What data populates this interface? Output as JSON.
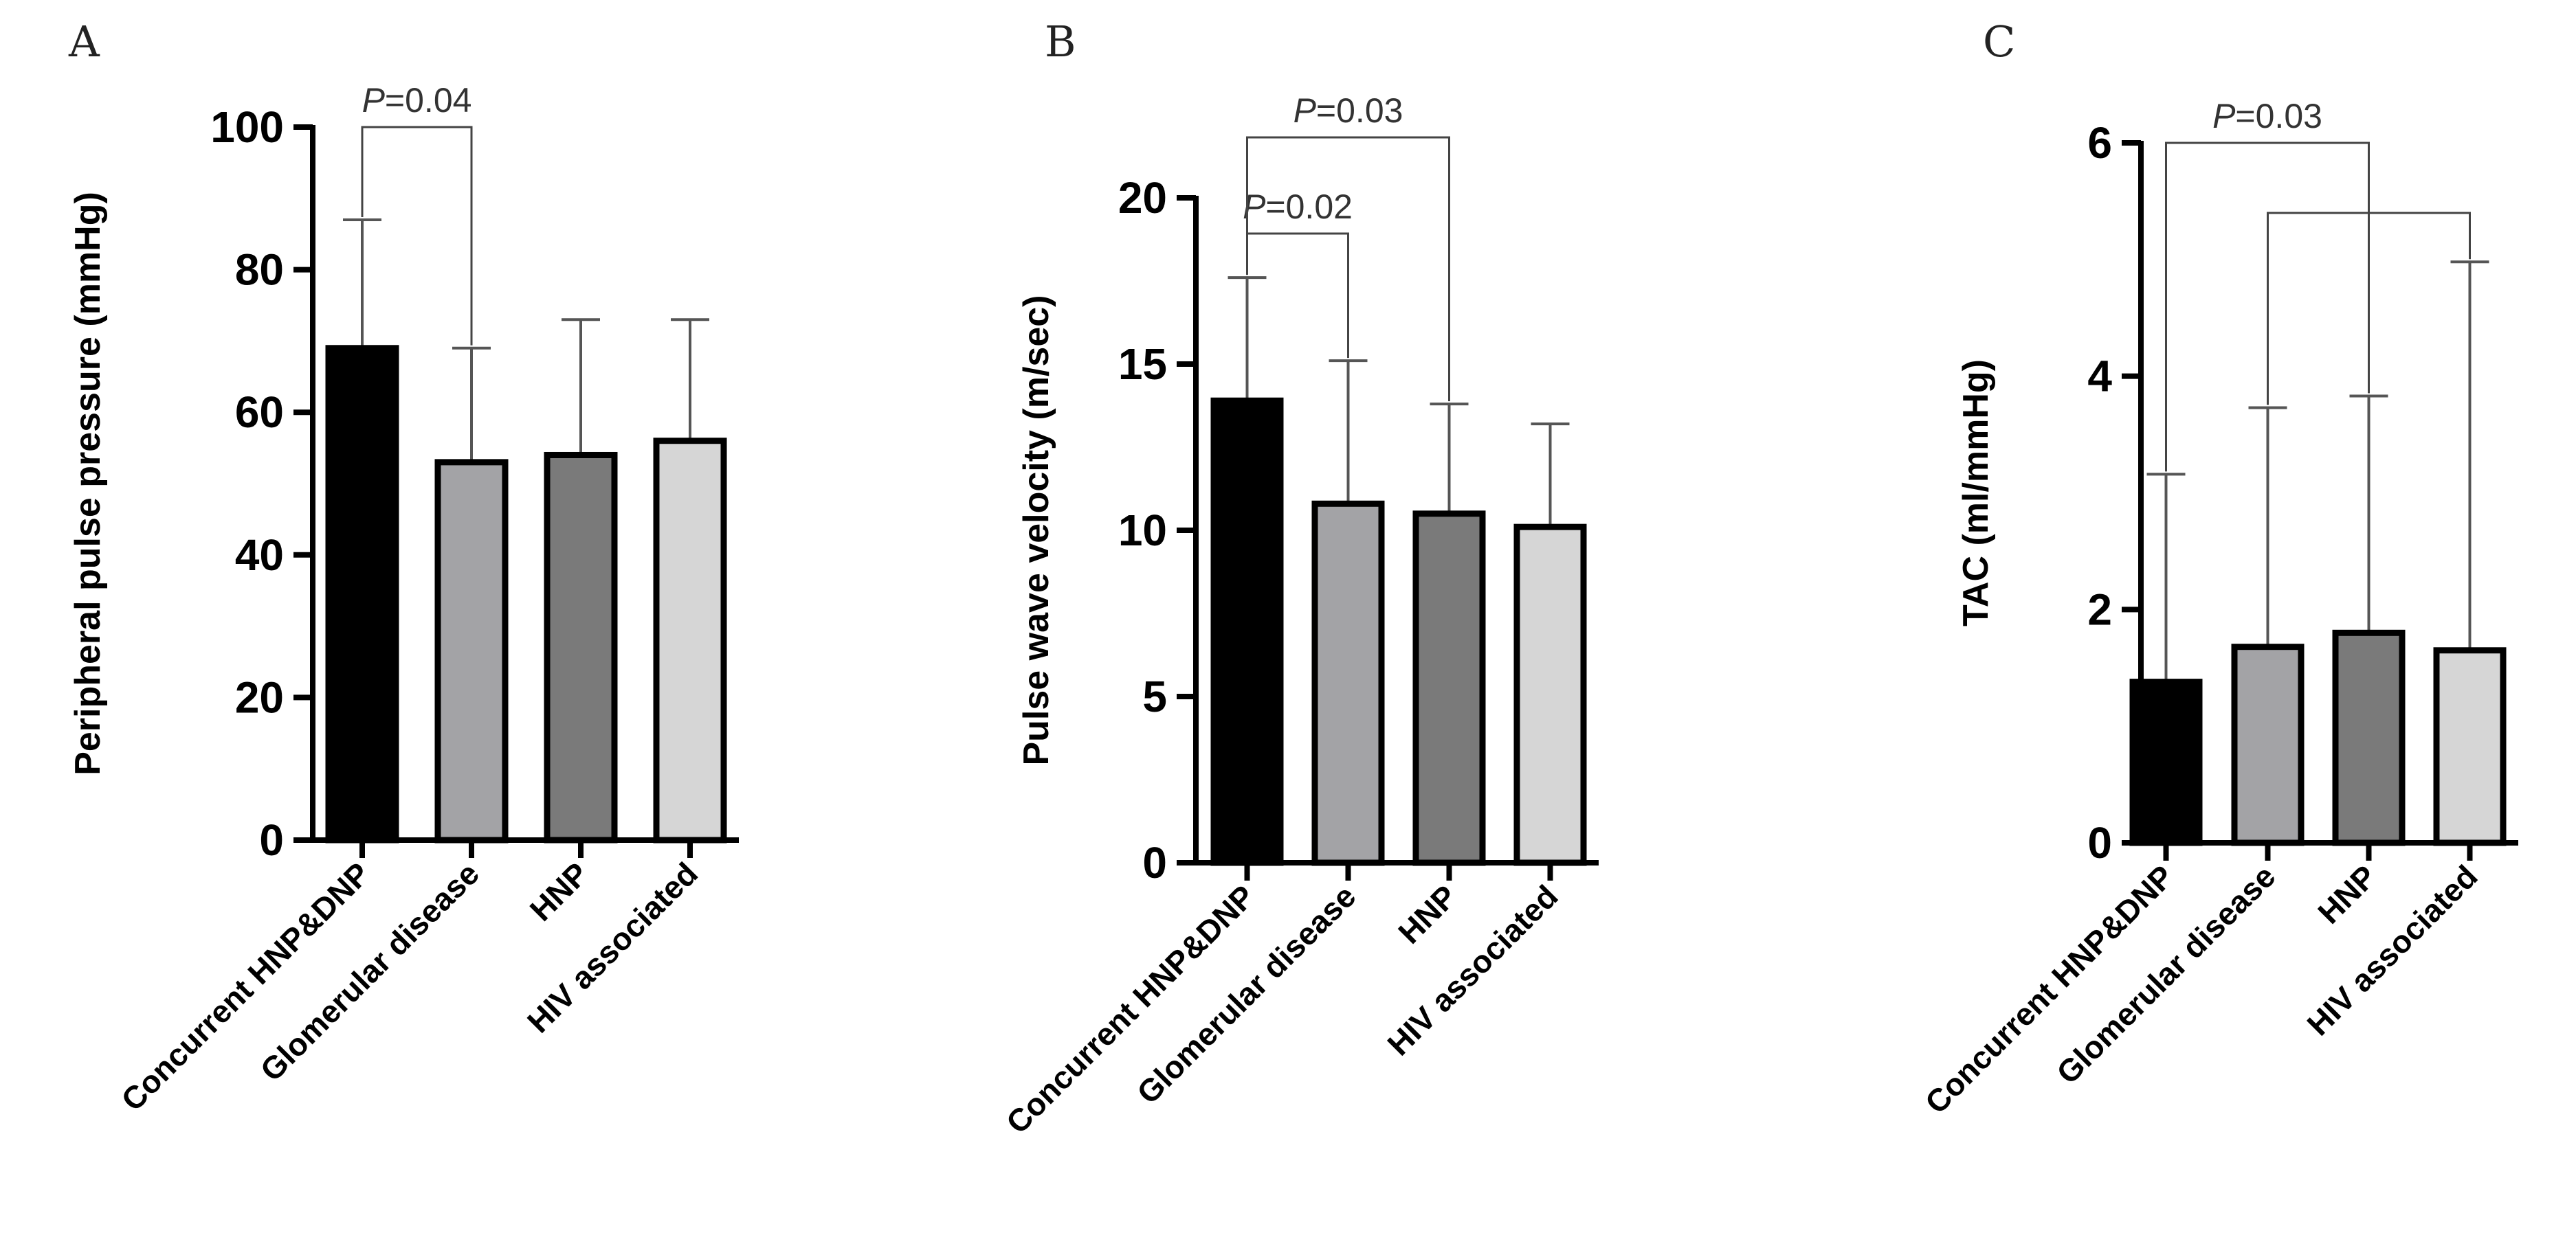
{
  "chart_data": [
    {
      "type": "bar",
      "panel": "A",
      "ylabel": "Peripheral pulse pressure (mmHg)",
      "ylim": [
        0,
        100
      ],
      "yticks": [
        "0",
        "20",
        "40",
        "60",
        "80",
        "100"
      ],
      "categories": [
        "Concurrent HNP&DNP",
        "Glomerular disease",
        "HNP",
        "HIV associated"
      ],
      "values": [
        69,
        53,
        54,
        56
      ],
      "error_upper": [
        87,
        69,
        73,
        73
      ],
      "bar_colors": [
        "#000000",
        "#a3a3a6",
        "#7a7a7a",
        "#d6d6d6"
      ],
      "significance": [
        {
          "from": 0,
          "to": 1,
          "p_symbol": "P",
          "p_value": "=0.04"
        }
      ]
    },
    {
      "type": "bar",
      "panel": "B",
      "ylabel": "Pulse wave velocity (m/sec)",
      "ylim": [
        0,
        20
      ],
      "yticks": [
        "0",
        "5",
        "10",
        "15",
        "20"
      ],
      "categories": [
        "Concurrent HNP&DNP",
        "Glomerular disease",
        "HNP",
        "HIV associated"
      ],
      "values": [
        13.9,
        10.8,
        10.5,
        10.1
      ],
      "error_upper": [
        17.6,
        15.1,
        13.8,
        13.2
      ],
      "bar_colors": [
        "#000000",
        "#a3a3a6",
        "#7a7a7a",
        "#d6d6d6"
      ],
      "significance": [
        {
          "from": 0,
          "to": 1,
          "p_symbol": "P",
          "p_value": "=0.02"
        },
        {
          "from": 0,
          "to": 2,
          "p_symbol": "P",
          "p_value": "=0.03"
        }
      ]
    },
    {
      "type": "bar",
      "panel": "C",
      "ylabel": "TAC (ml/mmHg)",
      "ylim": [
        0,
        6
      ],
      "yticks": [
        "0",
        "2",
        "4",
        "6"
      ],
      "categories": [
        "Concurrent HNP&DNP",
        "Glomerular disease",
        "HNP",
        "HIV associated"
      ],
      "values": [
        1.38,
        1.68,
        1.8,
        1.65
      ],
      "error_upper": [
        3.16,
        3.73,
        3.83,
        4.98
      ],
      "bar_colors": [
        "#000000",
        "#a3a3a6",
        "#7a7a7a",
        "#d6d6d6"
      ],
      "significance": [
        {
          "from": 0,
          "to": 2,
          "p_symbol": "P",
          "p_value": "=0.03"
        },
        {
          "from": 1,
          "to": 3,
          "p_symbol": "",
          "p_value": ""
        }
      ]
    }
  ]
}
